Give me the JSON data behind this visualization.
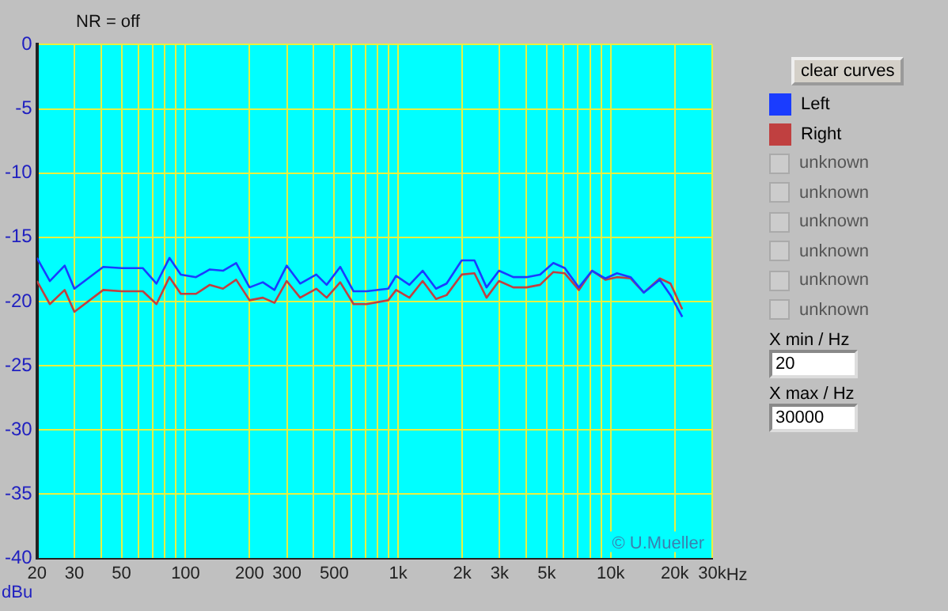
{
  "chart_data": {
    "type": "line",
    "ylabel": "dBu",
    "log": "x",
    "grid": true,
    "legend": "right",
    "marker": "none",
    "line_style": "solid",
    "xlim": [
      20,
      30000
    ],
    "ylim": [
      -40,
      0
    ],
    "xticks": [
      20,
      30,
      {
        "value": 40,
        "label": null
      },
      50,
      {
        "value": 60,
        "label": null
      },
      {
        "value": 70,
        "label": null
      },
      {
        "value": 80,
        "label": null
      },
      {
        "value": 90,
        "label": null
      },
      100,
      200,
      300,
      {
        "value": 400,
        "label": null
      },
      500,
      {
        "value": 600,
        "label": null
      },
      {
        "value": 700,
        "label": null
      },
      {
        "value": 800,
        "label": null
      },
      {
        "value": 900,
        "label": null
      },
      {
        "value": 1000,
        "label": "1k"
      },
      {
        "value": 2000,
        "label": "2k"
      },
      {
        "value": 3000,
        "label": "3k"
      },
      {
        "value": 4000,
        "label": null
      },
      {
        "value": 5000,
        "label": "5k"
      },
      {
        "value": 6000,
        "label": null
      },
      {
        "value": 7000,
        "label": null
      },
      {
        "value": 8000,
        "label": null
      },
      {
        "value": 9000,
        "label": null
      },
      {
        "value": 10000,
        "label": "10k"
      },
      {
        "value": 20000,
        "label": "20k"
      },
      {
        "value": 30000,
        "label": "30k"
      }
    ],
    "xlabel": "Hz",
    "yticks": [
      -40,
      -35,
      -30,
      -25,
      -20,
      -15,
      -10,
      -5,
      0
    ],
    "x": [
      20,
      23,
      27,
      30,
      41,
      50,
      63,
      73,
      84,
      95,
      112,
      130,
      150,
      173,
      200,
      231,
      262,
      299,
      346,
      412,
      461,
      534,
      617,
      711,
      898,
      978,
      1130,
      1304,
      1507,
      1690,
      1990,
      2285,
      2605,
      2980,
      3480,
      4020,
      4650,
      5370,
      6080,
      7080,
      8170,
      9440,
      10700,
      12400,
      14300,
      17000,
      19100,
      21700
    ],
    "series": [
      {
        "name": "Left",
        "color": "#1a3cff",
        "values": [
          -16.6,
          -18.4,
          -17.2,
          -19.0,
          -17.3,
          -17.4,
          -17.4,
          -18.6,
          -16.6,
          -17.9,
          -18.1,
          -17.5,
          -17.6,
          -17.0,
          -18.9,
          -18.5,
          -19.1,
          -17.2,
          -18.6,
          -17.9,
          -18.7,
          -17.3,
          -19.2,
          -19.2,
          -19.0,
          -18.0,
          -18.7,
          -17.6,
          -19.0,
          -18.6,
          -16.8,
          -16.8,
          -18.9,
          -17.6,
          -18.1,
          -18.1,
          -17.9,
          -17.0,
          -17.4,
          -18.9,
          -17.6,
          -18.2,
          -17.8,
          -18.1,
          -19.3,
          -18.3,
          -19.5,
          -21.2
        ]
      },
      {
        "name": "Right",
        "color": "#c04040",
        "values": [
          -18.4,
          -20.2,
          -19.1,
          -20.8,
          -19.1,
          -19.2,
          -19.2,
          -20.2,
          -18.1,
          -19.4,
          -19.4,
          -18.7,
          -19.0,
          -18.3,
          -19.9,
          -19.7,
          -20.1,
          -18.4,
          -19.7,
          -19.0,
          -19.7,
          -18.5,
          -20.2,
          -20.2,
          -19.9,
          -19.1,
          -19.7,
          -18.4,
          -19.8,
          -19.5,
          -17.9,
          -17.8,
          -19.7,
          -18.4,
          -18.9,
          -18.9,
          -18.7,
          -17.7,
          -17.8,
          -19.1,
          -17.6,
          -18.3,
          -18.1,
          -18.2,
          -19.3,
          -18.2,
          -18.6,
          -20.6
        ]
      }
    ],
    "annotations": [
      "NR = off",
      "© U.Mueller",
      "clear curves",
      "unknown",
      "unknown",
      "unknown",
      "unknown",
      "unknown",
      "unknown",
      "X min / Hz",
      "20",
      "X max / Hz",
      "30000"
    ]
  }
}
